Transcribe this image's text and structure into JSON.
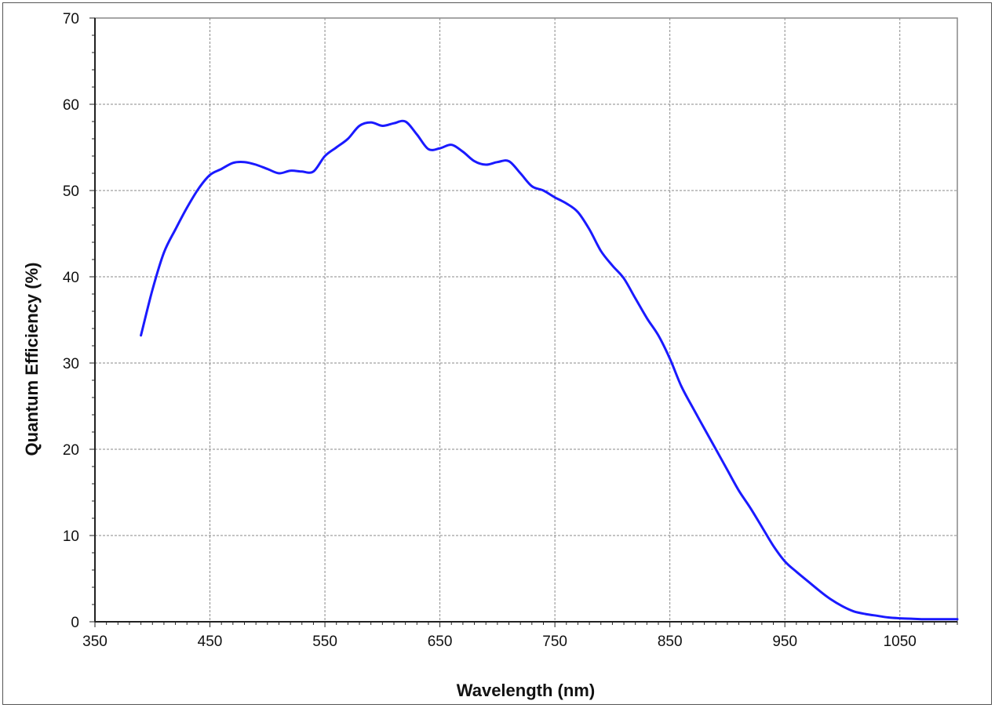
{
  "chart_data": {
    "type": "line",
    "title": "",
    "xlabel": "Wavelength (nm)",
    "ylabel": "Quantum Efficiency (%)",
    "xlim": [
      350,
      1100
    ],
    "ylim": [
      0,
      70
    ],
    "x_ticks": [
      350,
      450,
      550,
      650,
      750,
      850,
      950,
      1050
    ],
    "y_ticks": [
      0,
      10,
      20,
      30,
      40,
      50,
      60,
      70
    ],
    "grid": true,
    "legend": "none",
    "line_color": "#1a1aff",
    "series": [
      {
        "x": [
          390,
          400,
          410,
          420,
          430,
          440,
          450,
          460,
          470,
          480,
          490,
          500,
          510,
          520,
          530,
          540,
          550,
          560,
          570,
          580,
          590,
          600,
          610,
          620,
          630,
          640,
          650,
          660,
          670,
          680,
          690,
          700,
          710,
          720,
          730,
          740,
          750,
          760,
          770,
          780,
          790,
          800,
          810,
          820,
          830,
          840,
          850,
          860,
          870,
          880,
          890,
          900,
          910,
          920,
          930,
          940,
          950,
          960,
          970,
          980,
          990,
          1000,
          1010,
          1020,
          1030,
          1040,
          1050,
          1060,
          1070,
          1080,
          1090,
          1100
        ],
        "y": [
          33.2,
          38.5,
          42.8,
          45.5,
          48.0,
          50.2,
          51.8,
          52.5,
          53.2,
          53.3,
          53.0,
          52.5,
          52.0,
          52.3,
          52.2,
          52.2,
          54.0,
          55.0,
          56.0,
          57.5,
          57.9,
          57.5,
          57.8,
          58.0,
          56.5,
          54.8,
          54.9,
          55.3,
          54.5,
          53.4,
          53.0,
          53.3,
          53.4,
          52.0,
          50.5,
          50.0,
          49.2,
          48.5,
          47.5,
          45.5,
          43.0,
          41.3,
          39.8,
          37.5,
          35.2,
          33.2,
          30.5,
          27.3,
          24.8,
          22.4,
          20.0,
          17.6,
          15.2,
          13.2,
          11.0,
          8.8,
          7.0,
          5.8,
          4.7,
          3.6,
          2.6,
          1.8,
          1.2,
          0.9,
          0.7,
          0.5,
          0.4,
          0.35,
          0.3,
          0.3,
          0.3,
          0.3
        ]
      }
    ]
  }
}
